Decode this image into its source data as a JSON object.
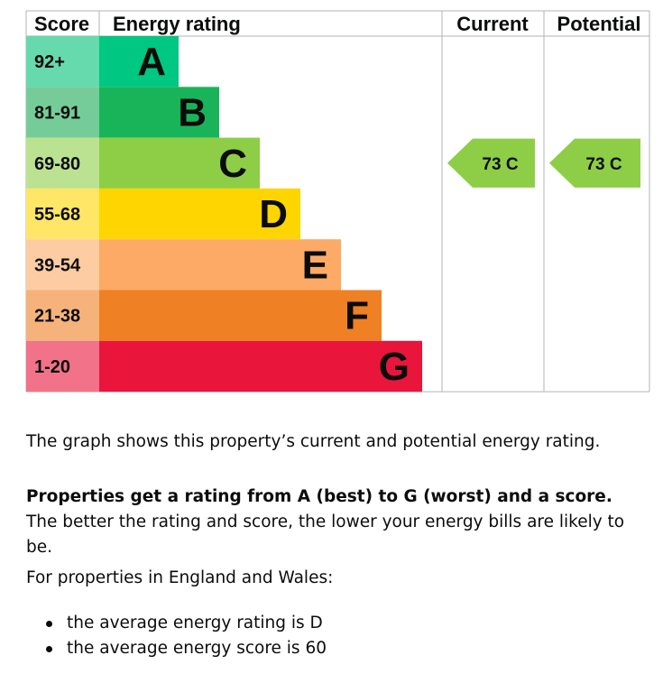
{
  "chart_data": {
    "type": "bar",
    "headers": {
      "score": "Score",
      "rating": "Energy rating",
      "current": "Current",
      "potential": "Potential"
    },
    "bands": [
      {
        "score_range": "92+",
        "letter": "A",
        "color": "#00c781",
        "score_bg": "#66d9ad"
      },
      {
        "score_range": "81-91",
        "letter": "B",
        "color": "#19b459",
        "score_bg": "#75cc98"
      },
      {
        "score_range": "69-80",
        "letter": "C",
        "color": "#8dce46",
        "score_bg": "#bbe290"
      },
      {
        "score_range": "55-68",
        "letter": "D",
        "color": "#ffd500",
        "score_bg": "#ffe666"
      },
      {
        "score_range": "39-54",
        "letter": "E",
        "color": "#fcaa65",
        "score_bg": "#fdcca3"
      },
      {
        "score_range": "21-38",
        "letter": "F",
        "color": "#ef8023",
        "score_bg": "#f5b37b"
      },
      {
        "score_range": "1-20",
        "letter": "G",
        "color": "#e9153b",
        "score_bg": "#f27389"
      }
    ],
    "current": {
      "score": 73,
      "band": "C",
      "label": "73  C"
    },
    "potential": {
      "score": 73,
      "band": "C",
      "label": "73  C"
    }
  },
  "text": {
    "graph_note": "The graph shows this property’s current and potential energy rating.",
    "rating_bold": "Properties get a rating from A (best) to G (worst) and a score.",
    "rating_rest": " The better the rating and score, the lower your energy bills are likely to be.",
    "region_intro": "For properties in England and Wales:",
    "average_rating": "the average energy rating is D",
    "average_score": "the average energy score is 60"
  }
}
